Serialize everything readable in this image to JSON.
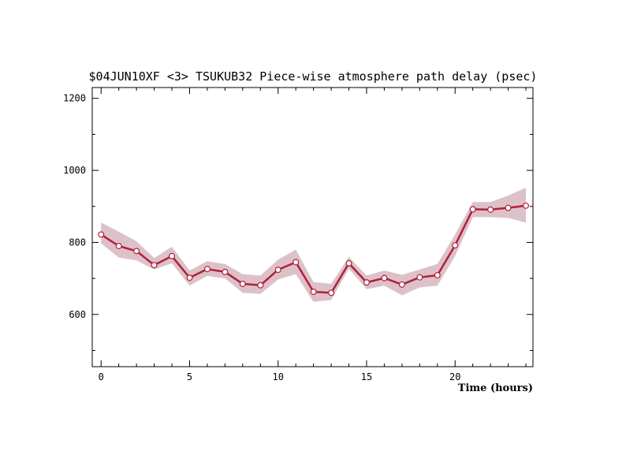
{
  "chart_data": {
    "type": "line",
    "title": "$04JUN10XF <3>  TSUKUB32  Piece-wise atmosphere path delay (psec)",
    "xlabel": "Time (hours)",
    "ylabel": "",
    "xlim": [
      -0.5,
      24.4
    ],
    "ylim": [
      455,
      1230
    ],
    "x_ticks": [
      0,
      5,
      10,
      15,
      20
    ],
    "y_ticks": [
      600,
      800,
      1000,
      1200
    ],
    "grid": false,
    "colors": {
      "line": "#b0203a",
      "band": "#dcc2c8",
      "marker_fill": "#ffffff",
      "axes": "#000000"
    },
    "series": [
      {
        "x": [
          0,
          1,
          2,
          3,
          4,
          5,
          6,
          7,
          8,
          9,
          10,
          11,
          12,
          13,
          14,
          15,
          16,
          17,
          18,
          19,
          20,
          21,
          22,
          23,
          24
        ],
        "values": [
          822,
          790,
          776,
          737,
          762,
          702,
          726,
          718,
          685,
          681,
          724,
          745,
          663,
          660,
          742,
          689,
          701,
          683,
          703,
          709,
          792,
          892,
          891,
          896,
          902
        ],
        "lower": [
          797,
          758,
          750,
          725,
          742,
          680,
          707,
          700,
          660,
          657,
          697,
          712,
          635,
          640,
          727,
          670,
          680,
          653,
          675,
          680,
          762,
          870,
          870,
          868,
          855
        ],
        "upper": [
          855,
          830,
          803,
          757,
          788,
          722,
          748,
          740,
          712,
          708,
          752,
          780,
          690,
          685,
          760,
          708,
          722,
          710,
          725,
          740,
          822,
          912,
          912,
          930,
          952
        ]
      }
    ]
  }
}
